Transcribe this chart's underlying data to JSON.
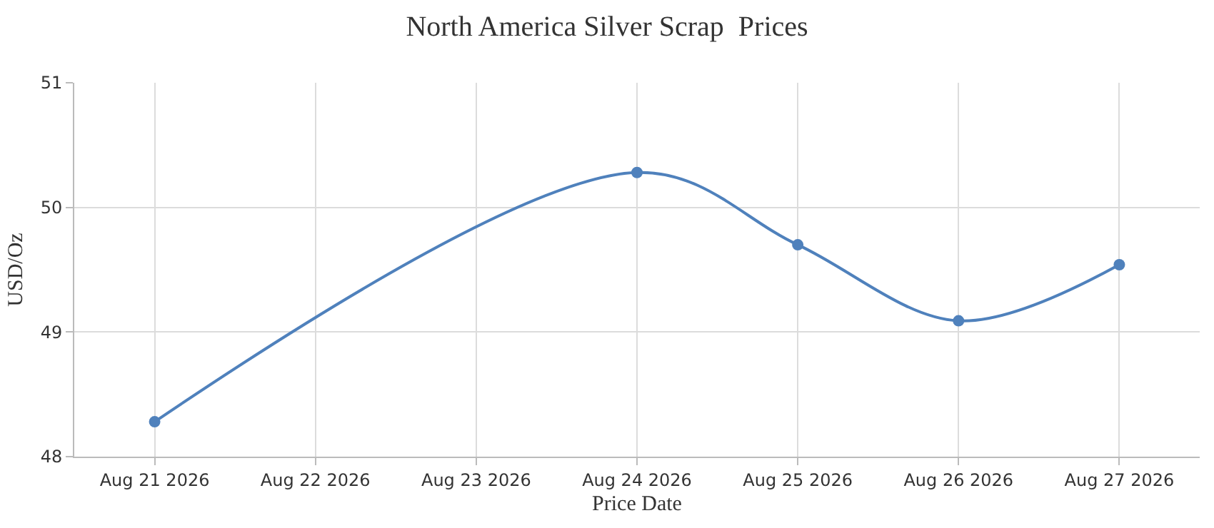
{
  "chart_data": {
    "type": "line",
    "title": "North America Silver Scrap  Prices",
    "xlabel": "Price Date",
    "ylabel": "USD/Oz",
    "x": [
      "2026-08-21",
      "2026-08-24",
      "2026-08-25",
      "2026-08-26",
      "2026-08-27"
    ],
    "series": [
      {
        "color": "#4f81bc",
        "values": [
          48.28,
          50.28,
          49.7,
          49.09,
          49.54
        ]
      }
    ],
    "xlim": [
      "2026-08-20T12:00",
      "2026-08-27T12:00"
    ],
    "xticks": [
      {
        "value": "2026-08-21",
        "label": "Aug 21 2026"
      },
      {
        "value": "2026-08-22",
        "label": "Aug 22 2026"
      },
      {
        "value": "2026-08-23",
        "label": "Aug 23 2026"
      },
      {
        "value": "2026-08-24",
        "label": "Aug 24 2026"
      },
      {
        "value": "2026-08-25",
        "label": "Aug 25 2026"
      },
      {
        "value": "2026-08-26",
        "label": "Aug 26 2026"
      },
      {
        "value": "2026-08-27",
        "label": "Aug 27 2026"
      }
    ],
    "ylim": [
      48,
      51
    ],
    "yticks": [
      48,
      49,
      50,
      51
    ],
    "grid": true,
    "legend": false,
    "marker": "circle",
    "line_style": "solid"
  }
}
